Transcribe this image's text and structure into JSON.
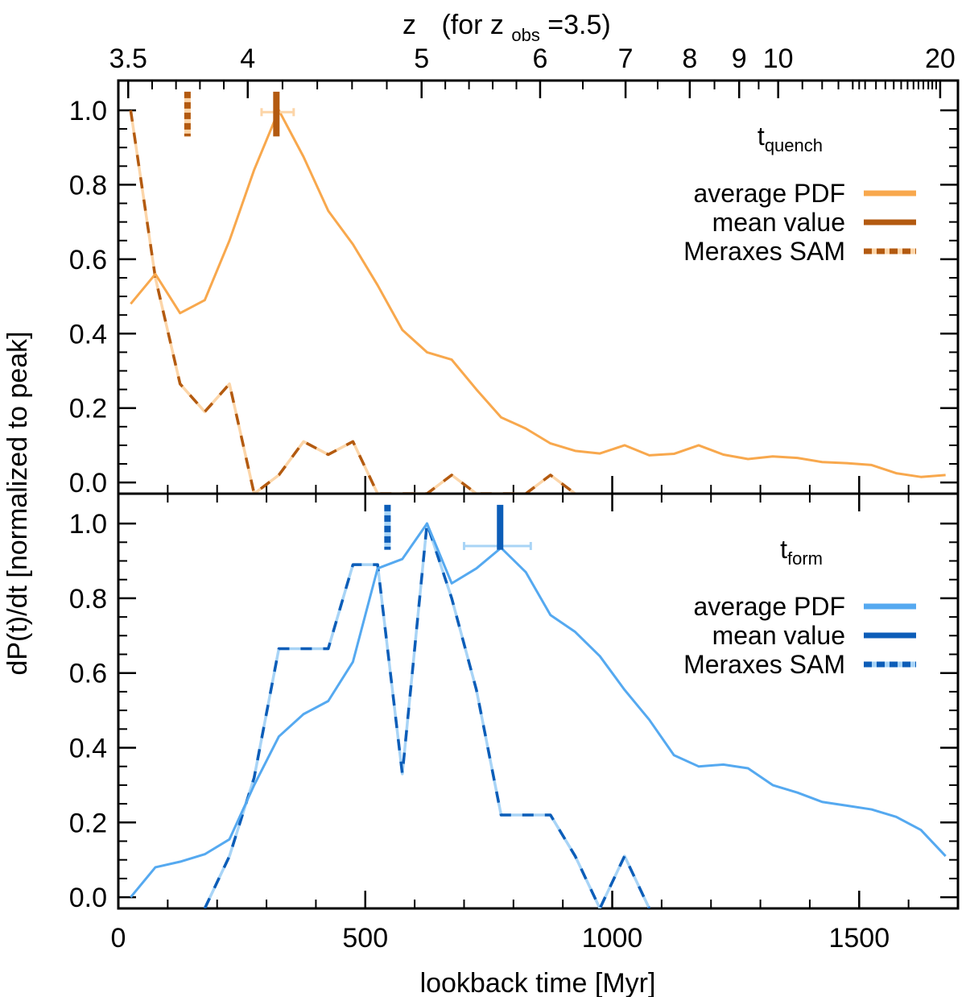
{
  "chart_data": {
    "type": "line",
    "xlabel": "lookback time [Myr]",
    "ylabel": "dP(t)/dt [normalized to peak]",
    "xlim": [
      0,
      1700
    ],
    "x_ticks": [
      0,
      500,
      1000,
      1500
    ],
    "x_tick_labels": [
      "0",
      "500",
      "1000",
      "1500"
    ],
    "top_axis": {
      "label_prefix": "z",
      "label_for": "(for z",
      "label_sub": "obs",
      "label_suffix": "=3.5)",
      "ticks": [
        {
          "label": "3.5",
          "x": 20
        },
        {
          "label": "4",
          "x": 262
        },
        {
          "label": "5",
          "x": 614
        },
        {
          "label": "6",
          "x": 854
        },
        {
          "label": "7",
          "x": 1027
        },
        {
          "label": "8",
          "x": 1157
        },
        {
          "label": "9",
          "x": 1257
        },
        {
          "label": "10",
          "x": 1336
        },
        {
          "label": "20",
          "x": 1664
        }
      ]
    },
    "panels": [
      {
        "id": "quench",
        "label_main": "t",
        "label_sub": "quench",
        "ylim": [
          -0.03,
          1.08
        ],
        "y_ticks": [
          0.0,
          0.2,
          0.4,
          0.6,
          0.8,
          1.0
        ],
        "y_tick_labels": [
          "0.0",
          "0.2",
          "0.4",
          "0.6",
          "0.8",
          "1.0"
        ],
        "colors": {
          "pdf": "#f8a84d",
          "mean": "#b35a10",
          "sam_light": "#fcd5a8",
          "sam_dark": "#b35a10"
        },
        "legend": [
          "average PDF",
          "mean value",
          "Meraxes SAM"
        ],
        "series": [
          {
            "name": "average PDF",
            "x": [
              25,
              75,
              125,
              175,
              225,
              275,
              325,
              375,
              425,
              475,
              525,
              575,
              625,
              675,
              725,
              775,
              825,
              875,
              925,
              975,
              1025,
              1075,
              1125,
              1175,
              1225,
              1275,
              1325,
              1375,
              1425,
              1475,
              1525,
              1575,
              1625,
              1675
            ],
            "values": [
              0.48,
              0.56,
              0.455,
              0.49,
              0.65,
              0.84,
              1.0,
              0.875,
              0.73,
              0.64,
              0.53,
              0.41,
              0.35,
              0.33,
              0.25,
              0.175,
              0.145,
              0.105,
              0.085,
              0.078,
              0.1,
              0.073,
              0.077,
              0.1,
              0.075,
              0.063,
              0.07,
              0.066,
              0.055,
              0.052,
              0.047,
              0.025,
              0.015,
              0.02
            ]
          },
          {
            "name": "Meraxes SAM",
            "x": [
              25,
              75,
              125,
              175,
              225,
              275,
              325,
              375,
              425,
              475,
              525,
              575,
              625,
              675,
              725,
              775,
              825,
              875,
              925
            ],
            "values": [
              1.0,
              0.55,
              0.265,
              0.19,
              0.265,
              -0.03,
              0.02,
              0.11,
              0.075,
              0.11,
              -0.03,
              -0.03,
              -0.03,
              0.02,
              -0.03,
              -0.03,
              -0.03,
              0.02,
              -0.03
            ]
          }
        ],
        "mean_value": {
          "x": 320,
          "y": 0.995,
          "xerr": [
            290,
            355
          ]
        },
        "sam_mean": {
          "x": 140
        }
      },
      {
        "id": "form",
        "label_main": "t",
        "label_sub": "form",
        "ylim": [
          -0.03,
          1.08
        ],
        "y_ticks": [
          0.0,
          0.2,
          0.4,
          0.6,
          0.8,
          1.0
        ],
        "y_tick_labels": [
          "0.0",
          "0.2",
          "0.4",
          "0.6",
          "0.8",
          "1.0"
        ],
        "colors": {
          "pdf": "#55a9f0",
          "mean": "#0c5db8",
          "sam_light": "#a8d4f6",
          "sam_dark": "#0c5db8"
        },
        "legend": [
          "average PDF",
          "mean value",
          "Meraxes SAM"
        ],
        "series": [
          {
            "name": "average PDF",
            "x": [
              25,
              75,
              125,
              175,
              225,
              275,
              325,
              375,
              425,
              475,
              525,
              575,
              625,
              675,
              725,
              775,
              825,
              875,
              925,
              975,
              1025,
              1075,
              1125,
              1175,
              1225,
              1275,
              1325,
              1375,
              1425,
              1475,
              1525,
              1575,
              1625,
              1675
            ],
            "values": [
              0.0,
              0.08,
              0.095,
              0.115,
              0.155,
              0.3,
              0.43,
              0.49,
              0.525,
              0.63,
              0.88,
              0.905,
              1.0,
              0.84,
              0.88,
              0.935,
              0.87,
              0.755,
              0.71,
              0.645,
              0.555,
              0.475,
              0.38,
              0.35,
              0.355,
              0.345,
              0.3,
              0.28,
              0.255,
              0.245,
              0.235,
              0.215,
              0.18,
              0.11
            ]
          },
          {
            "name": "Meraxes SAM",
            "x": [
              175,
              225,
              275,
              325,
              375,
              425,
              475,
              525,
              575,
              625,
              675,
              725,
              775,
              825,
              875,
              925,
              975,
              1025,
              1075
            ],
            "values": [
              -0.03,
              0.11,
              0.32,
              0.665,
              0.665,
              0.665,
              0.89,
              0.89,
              0.33,
              1.0,
              0.8,
              0.555,
              0.22,
              0.22,
              0.22,
              0.11,
              -0.03,
              0.11,
              -0.03
            ]
          }
        ],
        "mean_value": {
          "x": 773,
          "y": 0.94,
          "xerr": [
            700,
            835
          ]
        },
        "sam_mean": {
          "x": 545
        }
      }
    ]
  }
}
